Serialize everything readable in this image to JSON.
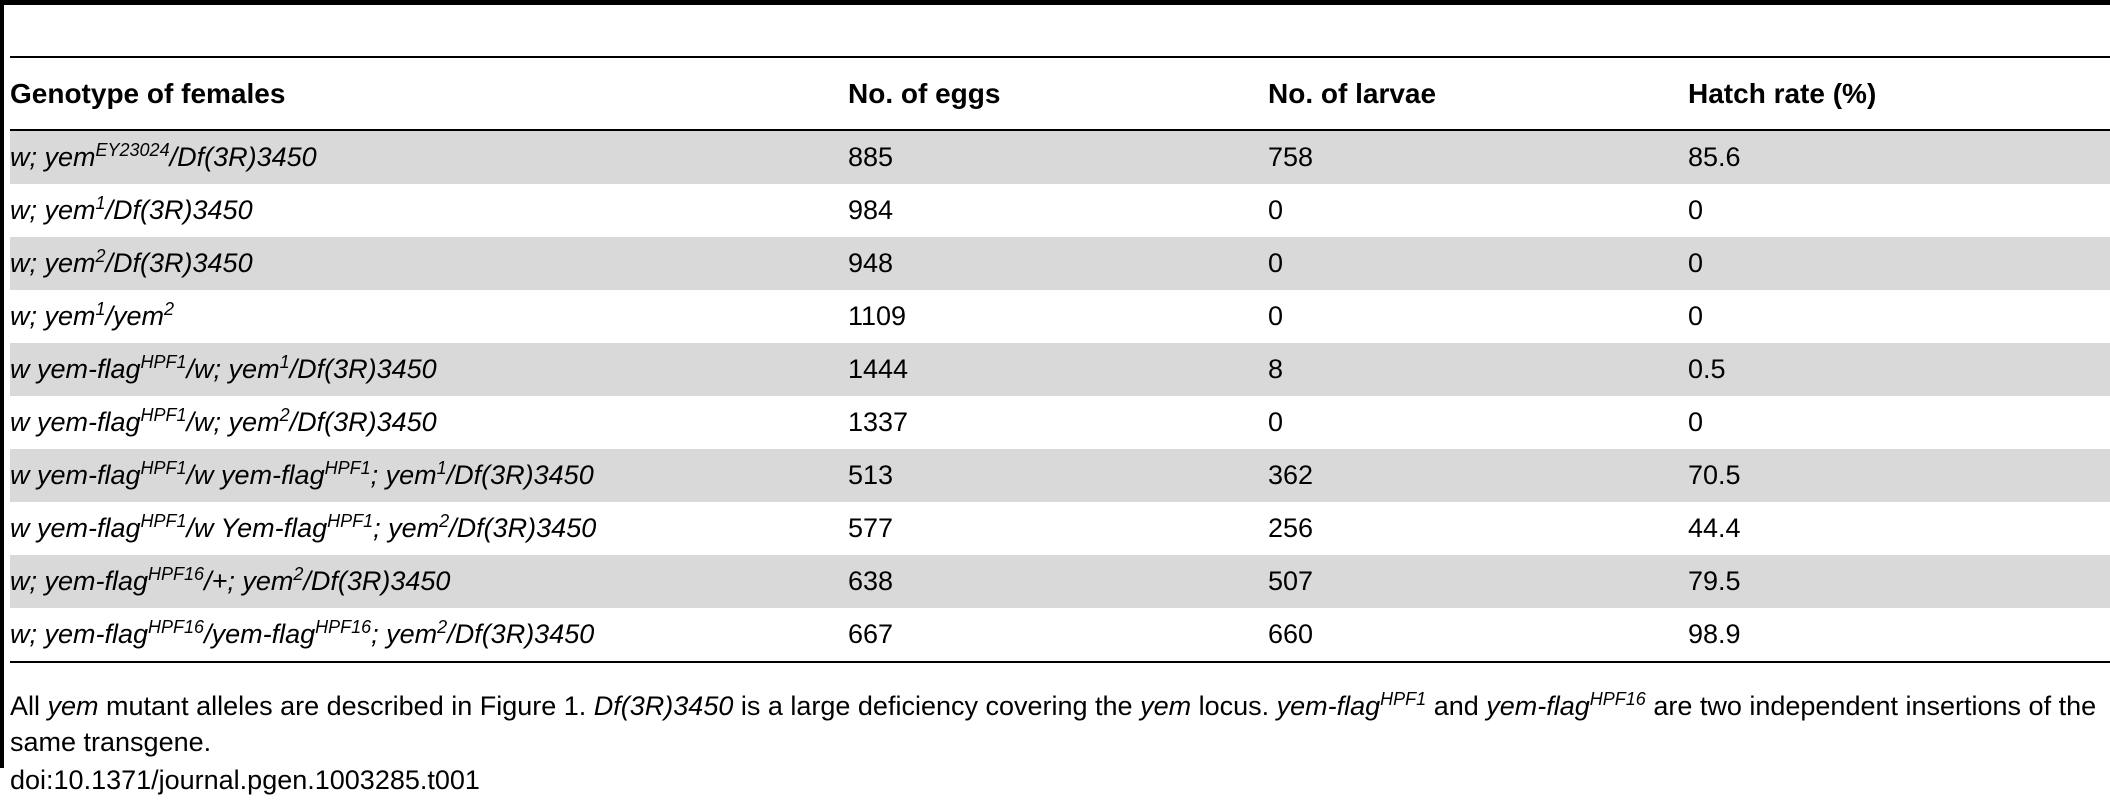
{
  "table": {
    "headers": [
      "Genotype of females",
      "No. of eggs",
      "No. of larvae",
      "Hatch rate (%)"
    ],
    "rows": [
      {
        "genotype": [
          [
            "t",
            "w; yem"
          ],
          [
            "s",
            "EY23024"
          ],
          [
            "t",
            "/Df(3R)3450"
          ]
        ],
        "eggs": "885",
        "larvae": "758",
        "hatch": "85.6"
      },
      {
        "genotype": [
          [
            "t",
            "w; yem"
          ],
          [
            "s",
            "1"
          ],
          [
            "t",
            "/Df(3R)3450"
          ]
        ],
        "eggs": "984",
        "larvae": "0",
        "hatch": "0"
      },
      {
        "genotype": [
          [
            "t",
            "w; yem"
          ],
          [
            "s",
            "2"
          ],
          [
            "t",
            "/Df(3R)3450"
          ]
        ],
        "eggs": "948",
        "larvae": "0",
        "hatch": "0"
      },
      {
        "genotype": [
          [
            "t",
            "w; yem"
          ],
          [
            "s",
            "1"
          ],
          [
            "t",
            "/yem"
          ],
          [
            "s",
            "2"
          ]
        ],
        "eggs": "1109",
        "larvae": "0",
        "hatch": "0"
      },
      {
        "genotype": [
          [
            "t",
            "w yem-flag"
          ],
          [
            "s",
            "HPF1"
          ],
          [
            "t",
            "/w; yem"
          ],
          [
            "s",
            "1"
          ],
          [
            "t",
            "/Df(3R)3450"
          ]
        ],
        "eggs": "1444",
        "larvae": "8",
        "hatch": "0.5"
      },
      {
        "genotype": [
          [
            "t",
            "w yem-flag"
          ],
          [
            "s",
            "HPF1"
          ],
          [
            "t",
            "/w; yem"
          ],
          [
            "s",
            "2"
          ],
          [
            "t",
            "/Df(3R)3450"
          ]
        ],
        "eggs": "1337",
        "larvae": "0",
        "hatch": "0"
      },
      {
        "genotype": [
          [
            "t",
            "w yem-flag"
          ],
          [
            "s",
            "HPF1"
          ],
          [
            "t",
            "/w yem-flag"
          ],
          [
            "s",
            "HPF1"
          ],
          [
            "t",
            "; yem"
          ],
          [
            "s",
            "1"
          ],
          [
            "t",
            "/Df(3R)3450"
          ]
        ],
        "eggs": "513",
        "larvae": "362",
        "hatch": "70.5"
      },
      {
        "genotype": [
          [
            "t",
            "w yem-flag"
          ],
          [
            "s",
            "HPF1"
          ],
          [
            "t",
            "/w Yem-flag"
          ],
          [
            "s",
            "HPF1"
          ],
          [
            "t",
            "; yem"
          ],
          [
            "s",
            "2"
          ],
          [
            "t",
            "/Df(3R)3450"
          ]
        ],
        "eggs": "577",
        "larvae": "256",
        "hatch": "44.4"
      },
      {
        "genotype": [
          [
            "t",
            "w; yem-flag"
          ],
          [
            "s",
            "HPF16"
          ],
          [
            "t",
            "/+; yem"
          ],
          [
            "s",
            "2"
          ],
          [
            "t",
            "/Df(3R)3450"
          ]
        ],
        "eggs": "638",
        "larvae": "507",
        "hatch": "79.5"
      },
      {
        "genotype": [
          [
            "t",
            "w; yem-flag"
          ],
          [
            "s",
            "HPF16"
          ],
          [
            "t",
            "/yem-flag"
          ],
          [
            "s",
            "HPF16"
          ],
          [
            "t",
            "; yem"
          ],
          [
            "s",
            "2"
          ],
          [
            "t",
            "/Df(3R)3450"
          ]
        ],
        "eggs": "667",
        "larvae": "660",
        "hatch": "98.9"
      }
    ]
  },
  "footnote": [
    [
      "r",
      "All "
    ],
    [
      "i",
      "yem"
    ],
    [
      "r",
      " mutant alleles are described in Figure 1. "
    ],
    [
      "i",
      "Df(3R)3450"
    ],
    [
      "r",
      " is a large deficiency covering the "
    ],
    [
      "i",
      "yem"
    ],
    [
      "r",
      " locus. "
    ],
    [
      "i",
      "yem-flag"
    ],
    [
      "is",
      "HPF1"
    ],
    [
      "r",
      " and "
    ],
    [
      "i",
      "yem-flag"
    ],
    [
      "is",
      "HPF16"
    ],
    [
      "r",
      " are two independent insertions of the same transgene."
    ]
  ],
  "doi": "doi:10.1371/journal.pgen.1003285.t001"
}
